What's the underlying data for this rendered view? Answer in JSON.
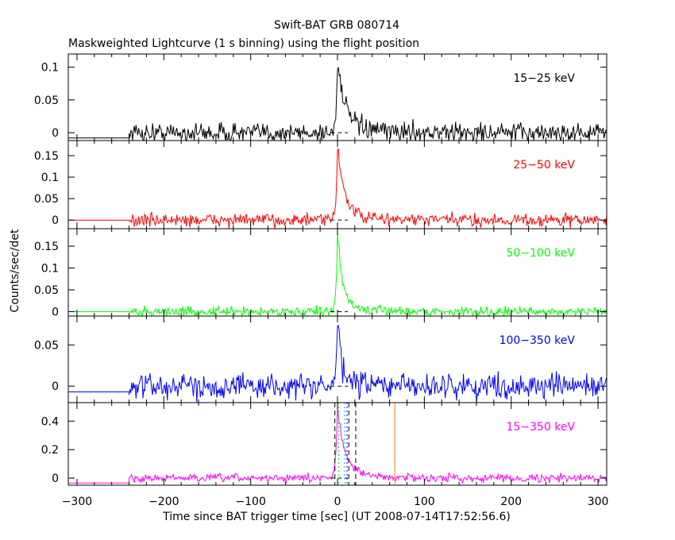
{
  "chart_data": {
    "type": "line",
    "title": "Swift-BAT GRB 080714",
    "subtitle": "Maskweighted Lightcurve (1 s binning) using the flight position",
    "xlabel": "Time since BAT trigger time [sec] (UT 2008-07-14T17:52:56.6)",
    "ylabel": "Counts/sec/det",
    "xlim": [
      -310,
      310
    ],
    "x_ticks": [
      -300,
      -200,
      -100,
      0,
      100,
      200,
      300
    ],
    "x_tick_labels": [
      "−300",
      "−200",
      "−100",
      "0",
      "100",
      "200",
      "300"
    ],
    "grid": false,
    "panels": [
      {
        "name": "15-25 keV",
        "label": "15−25 keV",
        "color": "#000000",
        "ylim": [
          -0.012,
          0.12
        ],
        "y_ticks": [
          0,
          0.05,
          0.1
        ],
        "y_tick_labels": [
          "0",
          "0.05",
          "0.1"
        ],
        "data_start": -240,
        "pre_level": -0.008,
        "noise": 0.0075,
        "peak_time": 0,
        "peak": 0.105,
        "rise": 1.5,
        "decay": 9,
        "tail": 0.006,
        "tail_decay": 50
      },
      {
        "name": "25-50 keV",
        "label": "25−50 keV",
        "color": "#ff0000",
        "ylim": [
          -0.02,
          0.185
        ],
        "y_ticks": [
          0,
          0.05,
          0.1,
          0.15
        ],
        "y_tick_labels": [
          "0",
          "0.05",
          "0.1",
          "0.15"
        ],
        "data_start": -240,
        "pre_level": 0.0,
        "noise": 0.0075,
        "peak_time": 0,
        "peak": 0.17,
        "rise": 1.5,
        "decay": 8,
        "tail": 0.008,
        "tail_decay": 45
      },
      {
        "name": "50-100 keV",
        "label": "50−100 keV",
        "color": "#00ff00",
        "ylim": [
          -0.01,
          0.19
        ],
        "y_ticks": [
          0,
          0.05,
          0.1,
          0.15
        ],
        "y_tick_labels": [
          "0",
          "0.05",
          "0.1",
          "0.15"
        ],
        "data_start": -240,
        "pre_level": 0.0,
        "noise": 0.0055,
        "peak_time": 0,
        "peak": 0.175,
        "rise": 1.5,
        "decay": 6,
        "tail": 0.01,
        "tail_decay": 35
      },
      {
        "name": "100-350 keV",
        "label": "100−350 keV",
        "color": "#0000ff",
        "ylim": [
          -0.02,
          0.085
        ],
        "y_ticks": [
          0,
          0.05
        ],
        "y_tick_labels": [
          "0",
          "0.05"
        ],
        "data_start": -240,
        "pre_level": -0.007,
        "noise": 0.0075,
        "peak_time": 0,
        "peak": 0.072,
        "rise": 1.5,
        "decay": 4,
        "tail": 0.008,
        "tail_decay": 25
      },
      {
        "name": "15-350 keV",
        "label": "15−350 keV",
        "color": "#ff00ff",
        "ylim": [
          -0.05,
          0.53
        ],
        "y_ticks": [
          0,
          0.2,
          0.4
        ],
        "y_tick_labels": [
          "0",
          "0.2",
          "0.4"
        ],
        "data_start": -240,
        "pre_level": -0.035,
        "noise": 0.014,
        "peak_time": 0,
        "peak": 0.46,
        "rise": 2,
        "decay": 9,
        "tail": 0.03,
        "tail_decay": 40,
        "markers": [
          {
            "x": -3,
            "color": "#000000",
            "style": "dashed"
          },
          {
            "x": 1.5,
            "color": "#00cc00",
            "style": "dotted"
          },
          {
            "x": 8,
            "color": "#00bbff",
            "style": "dotted"
          },
          {
            "x": 11,
            "color": "#0000ff",
            "style": "dotted"
          },
          {
            "x": 13,
            "color": "#000000",
            "style": "dashed"
          },
          {
            "x": 21,
            "color": "#000000",
            "style": "dashed"
          },
          {
            "x": 66,
            "color": "#ff8000",
            "style": "solid"
          }
        ]
      }
    ]
  }
}
